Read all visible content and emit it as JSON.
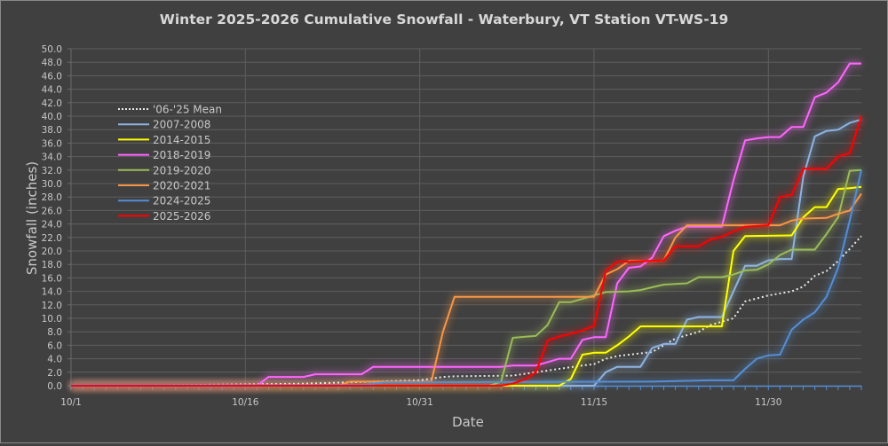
{
  "chart_data": {
    "type": "line",
    "title": "Winter 2025-2026 Cumulative Snowfall - Waterbury, VT Station VT-WS-19",
    "xlabel": "Date",
    "ylabel": "Snowfall (inches)",
    "x_unit": "days since 10/1",
    "xlim": [
      0,
      68
    ],
    "ylim": [
      0,
      50
    ],
    "y_ticks": [
      "0.0",
      "2.0",
      "4.0",
      "6.0",
      "8.0",
      "10.0",
      "12.0",
      "14.0",
      "16.0",
      "18.0",
      "20.0",
      "22.0",
      "24.0",
      "26.0",
      "28.0",
      "30.0",
      "32.0",
      "34.0",
      "36.0",
      "38.0",
      "40.0",
      "42.0",
      "44.0",
      "46.0",
      "48.0",
      "50.0"
    ],
    "x_ticks": [
      {
        "day": 0,
        "label": "10/1"
      },
      {
        "day": 15,
        "label": "10/16"
      },
      {
        "day": 30,
        "label": "10/31"
      },
      {
        "day": 45,
        "label": "11/15"
      },
      {
        "day": 60,
        "label": "11/30"
      }
    ],
    "grid": true,
    "legend_position": "upper-left inside",
    "series": [
      {
        "name": "'06-'25 Mean",
        "color": "#e8e8e8",
        "dashed": true,
        "points": [
          [
            0,
            0
          ],
          [
            10,
            0.1
          ],
          [
            20,
            0.3
          ],
          [
            30,
            0.8
          ],
          [
            32,
            1.3
          ],
          [
            33,
            1.4
          ],
          [
            38,
            1.5
          ],
          [
            40,
            2.0
          ],
          [
            42,
            2.5
          ],
          [
            44,
            3.0
          ],
          [
            45,
            3.2
          ],
          [
            46,
            4.0
          ],
          [
            47,
            4.4
          ],
          [
            49,
            4.8
          ],
          [
            50,
            5.0
          ],
          [
            51,
            6.0
          ],
          [
            52,
            7.0
          ],
          [
            54,
            8.0
          ],
          [
            55,
            9.0
          ],
          [
            56,
            9.5
          ],
          [
            57,
            10.0
          ],
          [
            58,
            12.5
          ],
          [
            60,
            13.4
          ],
          [
            62,
            14.0
          ],
          [
            63,
            14.7
          ],
          [
            64,
            16.3
          ],
          [
            65,
            17.0
          ],
          [
            66,
            18.5
          ],
          [
            67,
            20.3
          ],
          [
            68,
            22.2
          ]
        ]
      },
      {
        "name": "2007-2008",
        "color": "#8db3e2",
        "points": [
          [
            0,
            0
          ],
          [
            45,
            0
          ],
          [
            46,
            2.0
          ],
          [
            47,
            2.8
          ],
          [
            49,
            2.8
          ],
          [
            50,
            5.6
          ],
          [
            51,
            6.2
          ],
          [
            52,
            6.2
          ],
          [
            53,
            9.8
          ],
          [
            54,
            10.2
          ],
          [
            56,
            10.2
          ],
          [
            57,
            14.0
          ],
          [
            58,
            17.8
          ],
          [
            59,
            17.8
          ],
          [
            60,
            18.6
          ],
          [
            61,
            18.8
          ],
          [
            62,
            18.8
          ],
          [
            63,
            31.0
          ],
          [
            64,
            37.0
          ],
          [
            65,
            37.8
          ],
          [
            66,
            38.0
          ],
          [
            67,
            39.0
          ],
          [
            68,
            39.5
          ]
        ]
      },
      {
        "name": "2014-2015",
        "color": "#ffff00",
        "points": [
          [
            0,
            0
          ],
          [
            42,
            0
          ],
          [
            43,
            1.0
          ],
          [
            44,
            4.6
          ],
          [
            45,
            4.9
          ],
          [
            46,
            4.9
          ],
          [
            47,
            6.0
          ],
          [
            48,
            7.3
          ],
          [
            49,
            8.8
          ],
          [
            56,
            8.8
          ],
          [
            57,
            20.0
          ],
          [
            58,
            22.2
          ],
          [
            62,
            22.3
          ],
          [
            63,
            25.0
          ],
          [
            64,
            26.5
          ],
          [
            65,
            26.5
          ],
          [
            66,
            29.2
          ],
          [
            67,
            29.3
          ],
          [
            68,
            29.5
          ]
        ]
      },
      {
        "name": "2018-2019",
        "color": "#ff66ff",
        "points": [
          [
            0,
            0
          ],
          [
            16,
            0
          ],
          [
            17,
            1.3
          ],
          [
            20,
            1.3
          ],
          [
            21,
            1.7
          ],
          [
            25,
            1.7
          ],
          [
            26,
            2.8
          ],
          [
            37,
            2.8
          ],
          [
            38,
            3.0
          ],
          [
            40,
            3.0
          ],
          [
            41,
            3.5
          ],
          [
            42,
            4.0
          ],
          [
            43,
            4.0
          ],
          [
            44,
            6.8
          ],
          [
            45,
            7.2
          ],
          [
            46,
            7.2
          ],
          [
            47,
            15.2
          ],
          [
            48,
            17.5
          ],
          [
            49,
            17.7
          ],
          [
            50,
            19.0
          ],
          [
            51,
            22.2
          ],
          [
            52,
            23.0
          ],
          [
            53,
            23.6
          ],
          [
            56,
            23.6
          ],
          [
            57,
            30.5
          ],
          [
            58,
            36.4
          ],
          [
            59,
            36.7
          ],
          [
            60,
            36.9
          ],
          [
            61,
            36.9
          ],
          [
            62,
            38.4
          ],
          [
            63,
            38.4
          ],
          [
            64,
            42.8
          ],
          [
            65,
            43.5
          ],
          [
            66,
            45.0
          ],
          [
            67,
            47.8
          ],
          [
            68,
            47.8
          ]
        ]
      },
      {
        "name": "2019-2020",
        "color": "#9bbb59",
        "points": [
          [
            0,
            0
          ],
          [
            36,
            0
          ],
          [
            37,
            0.6
          ],
          [
            38,
            7.1
          ],
          [
            40,
            7.4
          ],
          [
            41,
            9.0
          ],
          [
            42,
            12.4
          ],
          [
            43,
            12.4
          ],
          [
            44,
            12.9
          ],
          [
            45,
            13.4
          ],
          [
            46,
            13.9
          ],
          [
            48,
            14.0
          ],
          [
            49,
            14.2
          ],
          [
            50,
            14.6
          ],
          [
            51,
            15.0
          ],
          [
            53,
            15.2
          ],
          [
            54,
            16.1
          ],
          [
            56,
            16.1
          ],
          [
            57,
            16.5
          ],
          [
            58,
            17.1
          ],
          [
            59,
            17.2
          ],
          [
            60,
            18.0
          ],
          [
            61,
            19.4
          ],
          [
            62,
            20.2
          ],
          [
            64,
            20.2
          ],
          [
            65,
            22.5
          ],
          [
            66,
            25.0
          ],
          [
            67,
            31.9
          ],
          [
            68,
            32.0
          ]
        ]
      },
      {
        "name": "2020-2021",
        "color": "#f79646",
        "points": [
          [
            0,
            0
          ],
          [
            23,
            0
          ],
          [
            24,
            0.6
          ],
          [
            31,
            0.6
          ],
          [
            32,
            8.0
          ],
          [
            33,
            13.2
          ],
          [
            45,
            13.2
          ],
          [
            46,
            16.5
          ],
          [
            47,
            17.3
          ],
          [
            48,
            18.5
          ],
          [
            50,
            18.5
          ],
          [
            51,
            18.6
          ],
          [
            52,
            22.0
          ],
          [
            53,
            23.8
          ],
          [
            61,
            23.8
          ],
          [
            62,
            24.5
          ],
          [
            63,
            24.8
          ],
          [
            65,
            24.9
          ],
          [
            66,
            25.5
          ],
          [
            67,
            26.0
          ],
          [
            68,
            28.5
          ]
        ]
      },
      {
        "name": "2024-2025",
        "color": "#558ed5",
        "points": [
          [
            0,
            0.1
          ],
          [
            25,
            0.1
          ],
          [
            27,
            0.5
          ],
          [
            50,
            0.6
          ],
          [
            55,
            0.8
          ],
          [
            57,
            0.8
          ],
          [
            58,
            2.5
          ],
          [
            59,
            4.0
          ],
          [
            60,
            4.5
          ],
          [
            61,
            4.6
          ],
          [
            62,
            8.3
          ],
          [
            63,
            9.8
          ],
          [
            64,
            10.9
          ],
          [
            65,
            13.2
          ],
          [
            66,
            17.5
          ],
          [
            67,
            24.5
          ],
          [
            68,
            32.0
          ]
        ]
      },
      {
        "name": "2025-2026",
        "color": "#ff0000",
        "points": [
          [
            0,
            0
          ],
          [
            37,
            0
          ],
          [
            38,
            0.3
          ],
          [
            39,
            0.9
          ],
          [
            40,
            2.0
          ],
          [
            41,
            6.7
          ],
          [
            42,
            7.3
          ],
          [
            43,
            7.7
          ],
          [
            44,
            8.2
          ],
          [
            45,
            8.9
          ],
          [
            46,
            17.0
          ],
          [
            47,
            18.4
          ],
          [
            48,
            18.4
          ],
          [
            51,
            18.6
          ],
          [
            52,
            20.7
          ],
          [
            54,
            20.7
          ],
          [
            55,
            21.7
          ],
          [
            56,
            22.1
          ],
          [
            57,
            22.9
          ],
          [
            58,
            23.6
          ],
          [
            60,
            23.8
          ],
          [
            61,
            28.0
          ],
          [
            62,
            28.3
          ],
          [
            63,
            32.2
          ],
          [
            65,
            32.2
          ],
          [
            66,
            34.0
          ],
          [
            67,
            34.5
          ],
          [
            68,
            40.0
          ]
        ]
      }
    ]
  }
}
